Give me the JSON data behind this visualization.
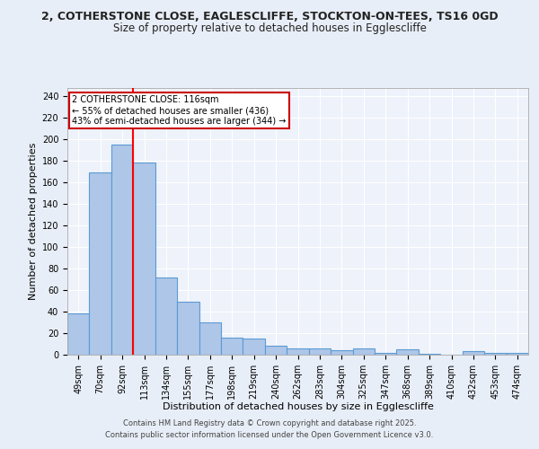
{
  "title1": "2, COTHERSTONE CLOSE, EAGLESCLIFFE, STOCKTON-ON-TEES, TS16 0GD",
  "title2": "Size of property relative to detached houses in Egglescliffe",
  "xlabel": "Distribution of detached houses by size in Egglescliffe",
  "ylabel": "Number of detached properties",
  "categories": [
    "49sqm",
    "70sqm",
    "92sqm",
    "113sqm",
    "134sqm",
    "155sqm",
    "177sqm",
    "198sqm",
    "219sqm",
    "240sqm",
    "262sqm",
    "283sqm",
    "304sqm",
    "325sqm",
    "347sqm",
    "368sqm",
    "389sqm",
    "410sqm",
    "432sqm",
    "453sqm",
    "474sqm"
  ],
  "values": [
    38,
    169,
    195,
    178,
    72,
    49,
    30,
    16,
    15,
    8,
    6,
    6,
    4,
    6,
    2,
    5,
    1,
    0,
    3,
    2,
    2
  ],
  "bar_color": "#aec6e8",
  "bar_edge_color": "#5b9bd5",
  "red_line_index": 3,
  "annotation_title": "2 COTHERSTONE CLOSE: 116sqm",
  "annotation_line1": "← 55% of detached houses are smaller (436)",
  "annotation_line2": "43% of semi-detached houses are larger (344) →",
  "annotation_box_color": "#ffffff",
  "annotation_box_edge": "#cc0000",
  "footer1": "Contains HM Land Registry data © Crown copyright and database right 2025.",
  "footer2": "Contains public sector information licensed under the Open Government Licence v3.0.",
  "ylim": [
    0,
    248
  ],
  "yticks": [
    0,
    20,
    40,
    60,
    80,
    100,
    120,
    140,
    160,
    180,
    200,
    220,
    240
  ],
  "bg_color": "#e8eef7",
  "plot_bg_color": "#eef2fa",
  "grid_color": "#ffffff",
  "title1_fontsize": 9,
  "title2_fontsize": 8.5,
  "tick_fontsize": 7,
  "label_fontsize": 8,
  "footer_fontsize": 6,
  "annot_fontsize": 7
}
